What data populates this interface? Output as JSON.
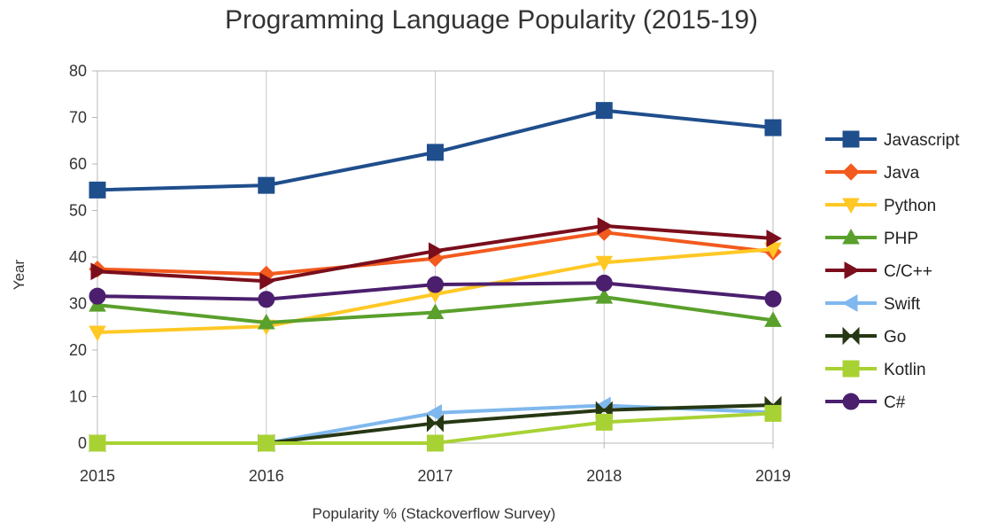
{
  "chart_data": {
    "type": "line",
    "title": "Programming Language Popularity (2015-19)",
    "xlabel": "Popularity % (Stackoverflow Survey)",
    "ylabel": "Year",
    "x": [
      "2015",
      "2016",
      "2017",
      "2018",
      "2019"
    ],
    "ylim": [
      0,
      80
    ],
    "yticks": [
      0,
      10,
      20,
      30,
      40,
      50,
      60,
      70,
      80
    ],
    "grid": "vertical",
    "legend_position": "right",
    "series": [
      {
        "name": "Javascript",
        "color": "#1f4e8c",
        "marker": "square",
        "values": [
          54.4,
          55.4,
          62.5,
          71.5,
          67.8
        ]
      },
      {
        "name": "Java",
        "color": "#f25a1e",
        "marker": "diamond",
        "values": [
          37.4,
          36.3,
          39.7,
          45.3,
          41.1
        ]
      },
      {
        "name": "Python",
        "color": "#ffc825",
        "marker": "triangle-down",
        "values": [
          23.8,
          25.1,
          32.0,
          38.8,
          41.7
        ]
      },
      {
        "name": "PHP",
        "color": "#5aa02c",
        "marker": "triangle-up",
        "values": [
          29.7,
          25.9,
          28.1,
          31.4,
          26.4
        ]
      },
      {
        "name": "C/C++",
        "color": "#7a0e1c",
        "marker": "triangle-right",
        "values": [
          36.9,
          34.8,
          41.3,
          46.7,
          44.0
        ]
      },
      {
        "name": "Swift",
        "color": "#7fb8ee",
        "marker": "triangle-left",
        "values": [
          0,
          0,
          6.5,
          8.1,
          6.6
        ]
      },
      {
        "name": "Go",
        "color": "#263714",
        "marker": "bowtie",
        "values": [
          0,
          0,
          4.3,
          7.1,
          8.2
        ]
      },
      {
        "name": "Kotlin",
        "color": "#a8d234",
        "marker": "square",
        "values": [
          0,
          0,
          0,
          4.5,
          6.4
        ]
      },
      {
        "name": "C#",
        "color": "#4b1f6e",
        "marker": "circle",
        "values": [
          31.6,
          30.9,
          34.1,
          34.4,
          31.0
        ]
      }
    ]
  }
}
